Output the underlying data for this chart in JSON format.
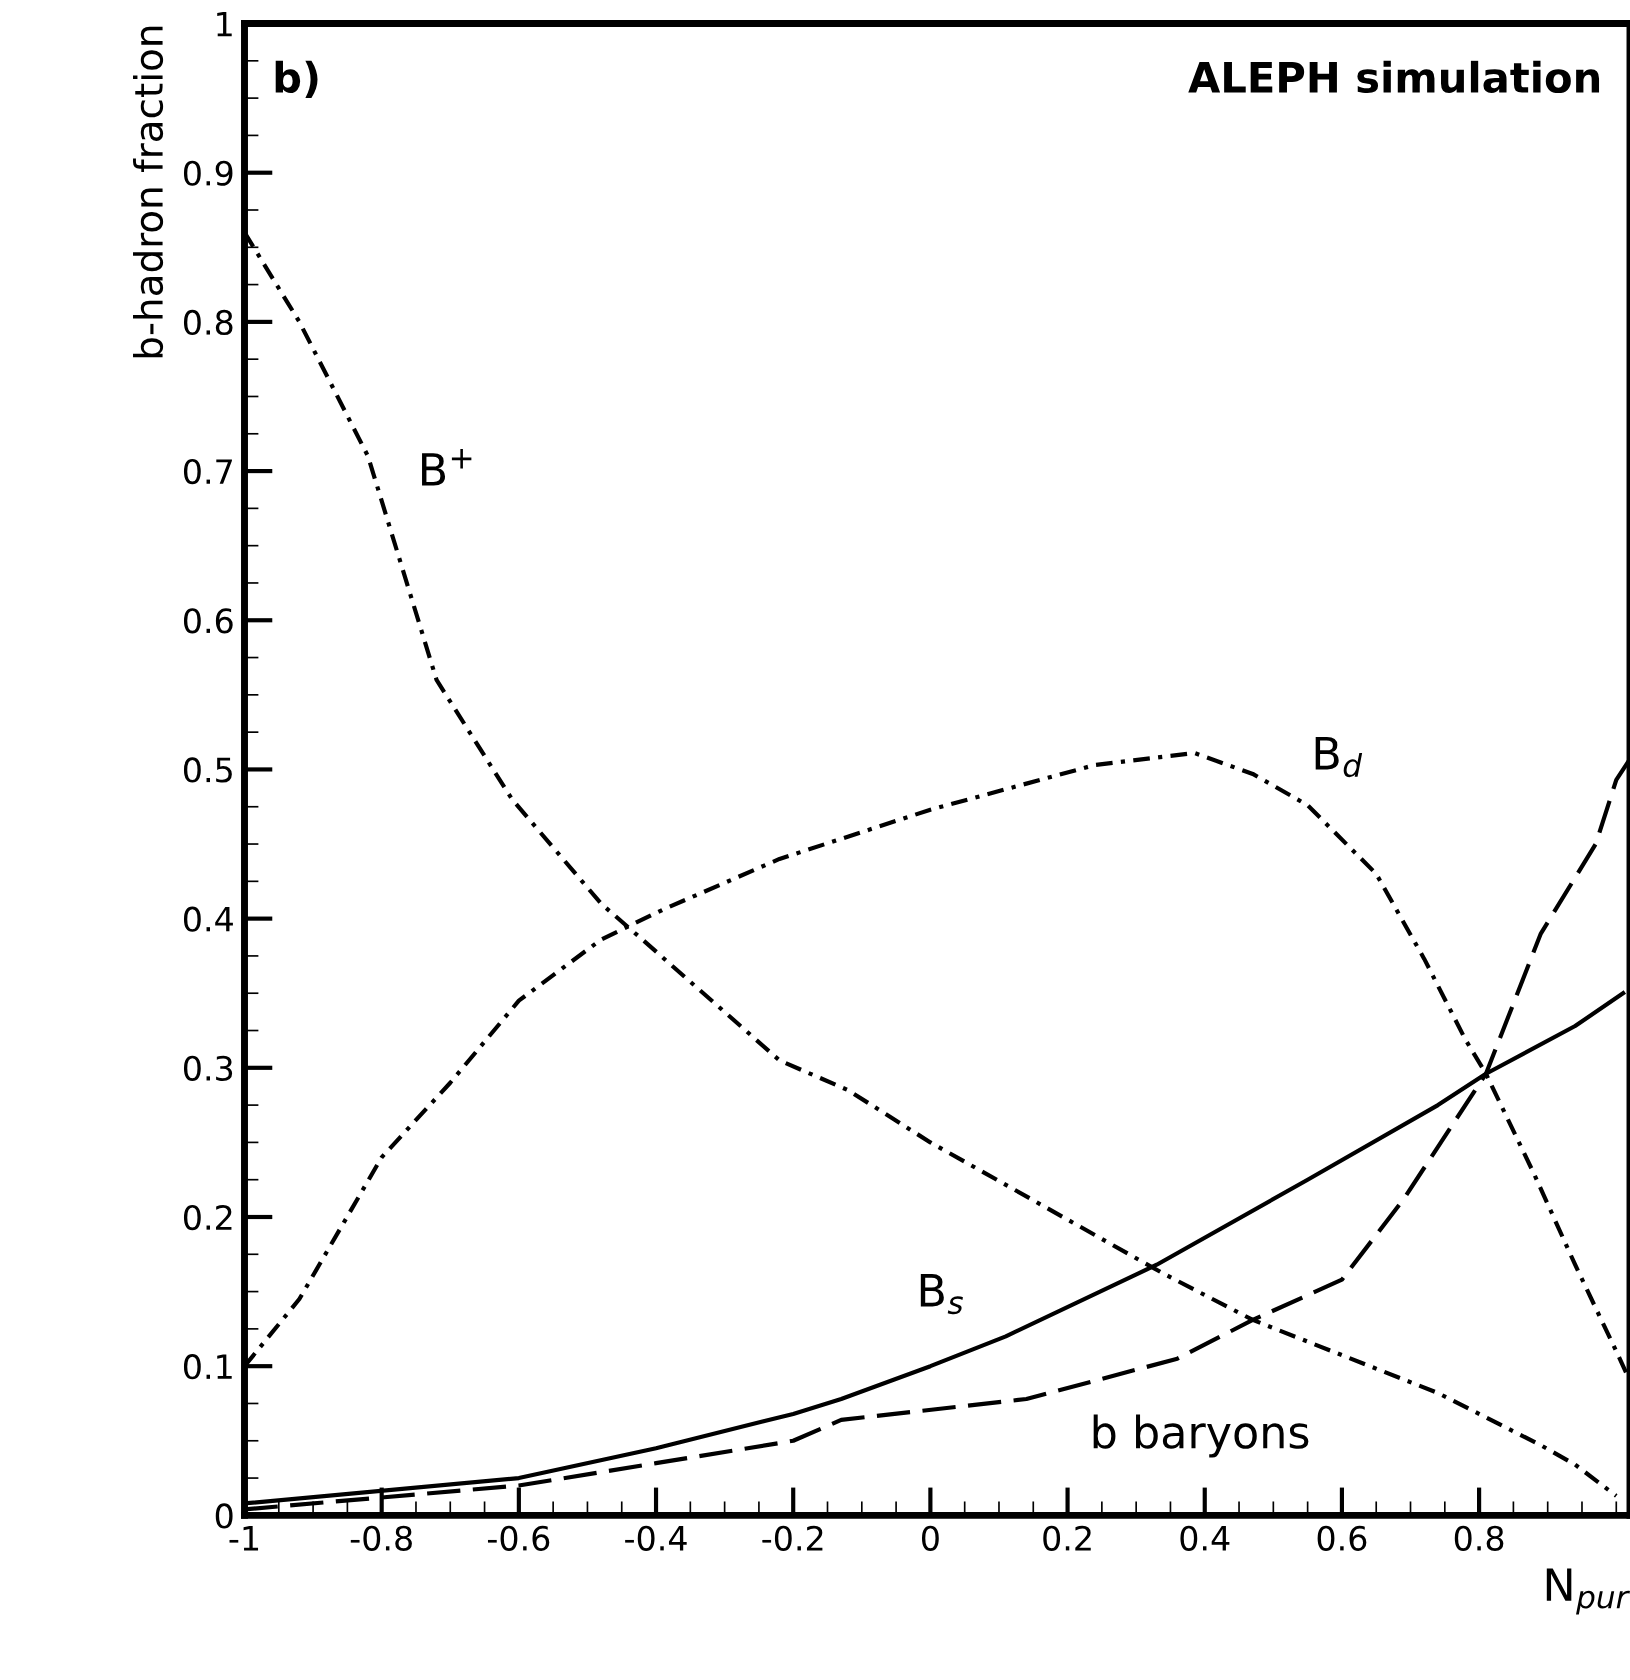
{
  "chart_data": {
    "type": "line",
    "xlabel": "N$_{pur}$",
    "ylabel": "b-hadron fraction",
    "xlim": [
      -1,
      1.02
    ],
    "ylim": [
      0,
      1
    ],
    "xticks": [
      -1,
      -0.8,
      -0.6,
      -0.4,
      -0.2,
      0,
      0.2,
      0.4,
      0.6,
      0.8
    ],
    "yticks": [
      0,
      0.1,
      0.2,
      0.3,
      0.4,
      0.5,
      0.6,
      0.7,
      0.8,
      0.9,
      1
    ],
    "grid": false,
    "legend": false,
    "series": [
      {
        "name": "B$^{+}$",
        "color": "#000000",
        "line_style": "dotted",
        "x": [
          -1,
          -0.92,
          -0.82,
          -0.72,
          -0.61,
          -0.48,
          -0.42,
          -0.22,
          -0.12,
          0,
          0.34,
          0.47,
          0.74,
          0.89,
          0.94,
          1.0
        ],
        "values": [
          0.86,
          0.8,
          0.71,
          0.56,
          0.48,
          0.41,
          0.386,
          0.305,
          0.285,
          0.25,
          0.162,
          0.131,
          0.082,
          0.047,
          0.034,
          0.013
        ]
      },
      {
        "name": "B$_{d}$",
        "color": "#000000",
        "line_style": "dotted",
        "x": [
          -1,
          -0.92,
          -0.8,
          -0.7,
          -0.6,
          -0.48,
          -0.39,
          -0.22,
          0,
          0.24,
          0.385,
          0.47,
          0.55,
          0.65,
          0.72,
          0.78,
          0.81,
          0.88,
          0.94,
          1.0,
          1.02
        ],
        "values": [
          0.1,
          0.145,
          0.24,
          0.29,
          0.345,
          0.386,
          0.406,
          0.44,
          0.473,
          0.503,
          0.511,
          0.497,
          0.476,
          0.43,
          0.373,
          0.319,
          0.296,
          0.229,
          0.168,
          0.11,
          0.09
        ]
      },
      {
        "name": "B$_{s}$",
        "color": "#000000",
        "line_style": "solid",
        "x": [
          -1,
          -0.6,
          -0.4,
          -0.2,
          -0.13,
          0,
          0.11,
          0.33,
          0.55,
          0.74,
          0.81,
          0.94,
          1.01
        ],
        "values": [
          0.008,
          0.025,
          0.045,
          0.068,
          0.078,
          0.1,
          0.12,
          0.168,
          0.225,
          0.275,
          0.296,
          0.328,
          0.35
        ]
      },
      {
        "name": "b baryons",
        "color": "#000000",
        "line_style": "dashed",
        "x": [
          -1,
          -0.6,
          -0.4,
          -0.2,
          -0.13,
          0.14,
          0.36,
          0.47,
          0.6,
          0.69,
          0.81,
          0.89,
          0.97,
          1.0,
          1.02
        ],
        "values": [
          0.004,
          0.02,
          0.035,
          0.05,
          0.064,
          0.078,
          0.105,
          0.131,
          0.158,
          0.212,
          0.296,
          0.39,
          0.45,
          0.493,
          0.507
        ]
      }
    ],
    "annotations": [
      "b)",
      "ALEPH simulation"
    ]
  }
}
